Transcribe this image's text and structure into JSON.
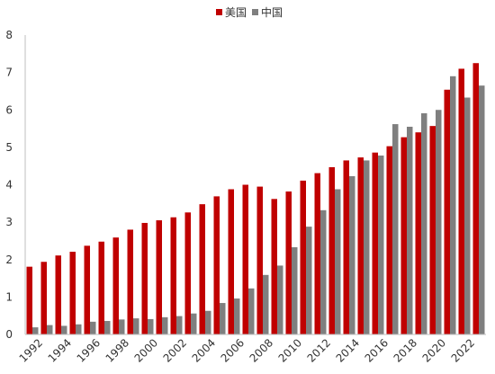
{
  "chart_data": {
    "type": "bar",
    "legend_position": "top-center",
    "grid": false,
    "ylim": [
      0,
      8
    ],
    "yticks": [
      0,
      1,
      2,
      3,
      4,
      5,
      6,
      7,
      8
    ],
    "categories": [
      "1992",
      "1993",
      "1994",
      "1995",
      "1996",
      "1997",
      "1998",
      "1999",
      "2000",
      "2001",
      "2002",
      "2003",
      "2004",
      "2005",
      "2006",
      "2007",
      "2008",
      "2009",
      "2010",
      "2011",
      "2012",
      "2013",
      "2014",
      "2015",
      "2016",
      "2017",
      "2018",
      "2019",
      "2020",
      "2021",
      "2022",
      "2023"
    ],
    "xtick_labels": [
      "1992",
      "1994",
      "1996",
      "1998",
      "2000",
      "2002",
      "2004",
      "2006",
      "2008",
      "2010",
      "2012",
      "2014",
      "2016",
      "2018",
      "2020",
      "2022"
    ],
    "series": [
      {
        "name": "美国",
        "color": "#C00000",
        "values": [
          1.81,
          1.94,
          2.11,
          2.21,
          2.37,
          2.48,
          2.59,
          2.8,
          2.98,
          3.05,
          3.13,
          3.26,
          3.48,
          3.69,
          3.88,
          4.0,
          3.95,
          3.62,
          3.82,
          4.11,
          4.31,
          4.47,
          4.65,
          4.73,
          4.86,
          5.03,
          5.27,
          5.4,
          5.57,
          6.54,
          7.1,
          7.25
        ]
      },
      {
        "name": "中国",
        "color": "#7F7F7F",
        "values": [
          0.19,
          0.25,
          0.23,
          0.27,
          0.34,
          0.36,
          0.4,
          0.43,
          0.41,
          0.46,
          0.49,
          0.56,
          0.63,
          0.84,
          0.96,
          1.23,
          1.59,
          1.84,
          2.33,
          2.88,
          3.32,
          3.88,
          4.23,
          4.65,
          4.78,
          5.62,
          5.55,
          5.91,
          6.0,
          6.9,
          6.33,
          6.65
        ]
      }
    ]
  }
}
